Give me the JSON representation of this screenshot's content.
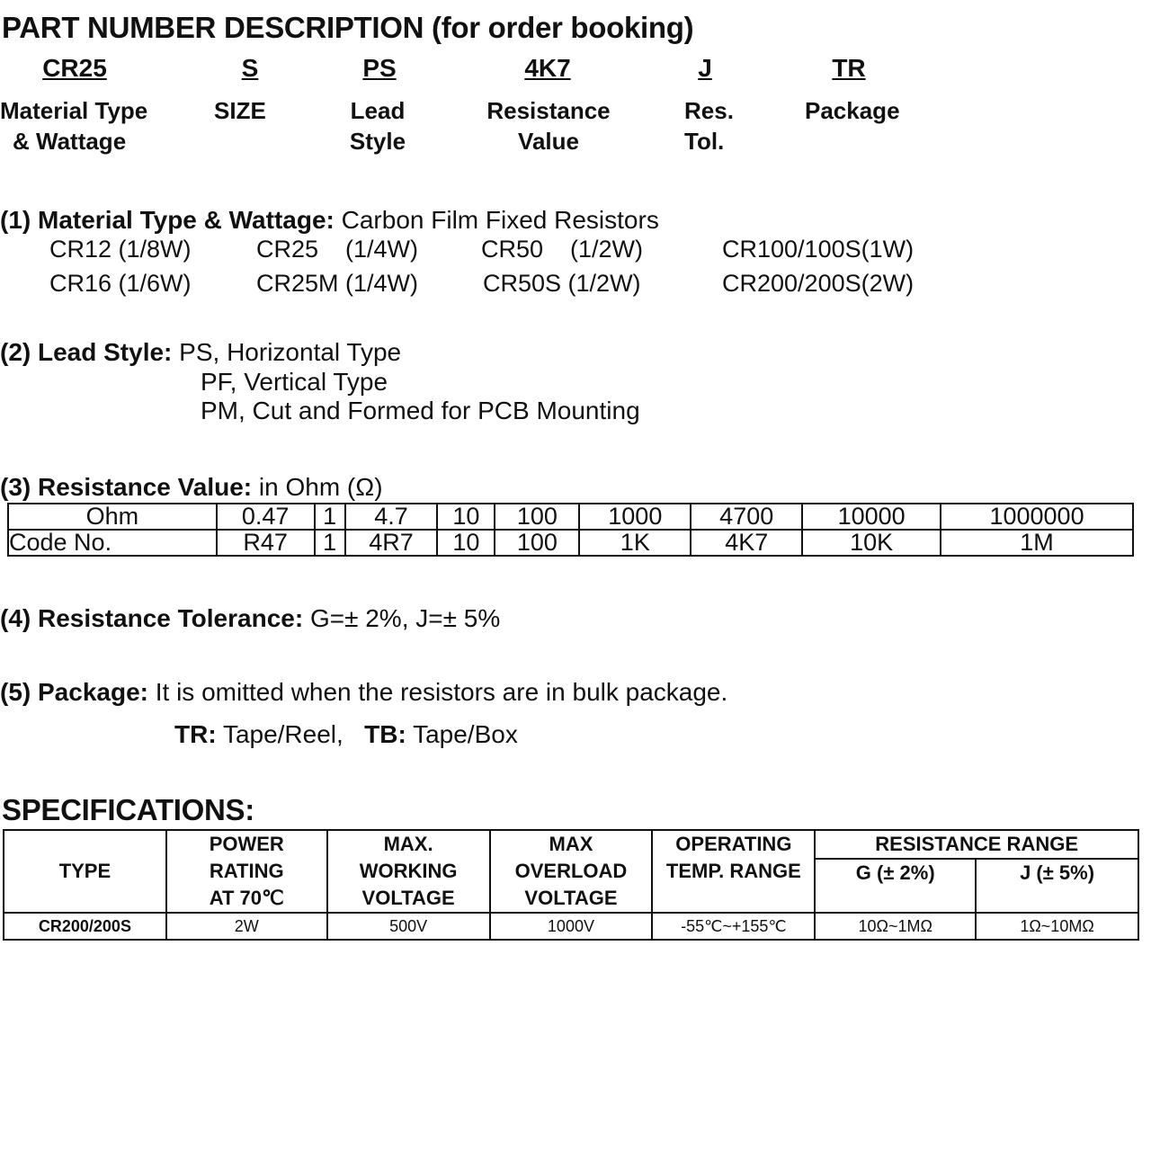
{
  "title": "PART NUMBER DESCRIPTION (for order booking)",
  "part_fields": [
    {
      "code": "CR25",
      "label1": "Material Type",
      "label2": "& Wattage"
    },
    {
      "code": "S",
      "label1": "SIZE",
      "label2": ""
    },
    {
      "code": "PS",
      "label1": "Lead",
      "label2": "Style"
    },
    {
      "code": "4K7",
      "label1": "Resistance",
      "label2": "Value"
    },
    {
      "code": "J",
      "label1": "Res.",
      "label2": "Tol."
    },
    {
      "code": "TR",
      "label1": "Package",
      "label2": ""
    }
  ],
  "section1": {
    "heading": "(1) Material Type & Wattage:",
    "text": "Carbon Film Fixed Resistors",
    "options": [
      [
        "CR12 (1/8W)",
        "CR25    (1/4W)",
        "CR50    (1/2W)",
        "CR100/100S(1W)"
      ],
      [
        "CR16 (1/6W)",
        "CR25M (1/4W)",
        "CR50S (1/2W)",
        "CR200/200S(2W)"
      ]
    ]
  },
  "section2": {
    "heading": "(2) Lead Style:",
    "lines": [
      "PS, Horizontal Type",
      "PF, Vertical Type",
      "PM, Cut and Formed for PCB Mounting"
    ]
  },
  "section3": {
    "heading": "(3) Resistance Value:",
    "text": "in Ohm (Ω)",
    "rows": [
      [
        "Ohm",
        "0.47",
        "1",
        "4.7",
        "10",
        "100",
        "1000",
        "4700",
        "10000",
        "1000000"
      ],
      [
        "Code No.",
        "R47",
        "1",
        "4R7",
        "10",
        "100",
        "1K",
        "4K7",
        "10K",
        "1M"
      ]
    ]
  },
  "section4": {
    "heading": "(4) Resistance Tolerance:",
    "text": "G=± 2%, J=± 5%"
  },
  "section5": {
    "heading": "(5) Package:",
    "text": "It is omitted when the resistors are in bulk package.",
    "tr_code": "TR:",
    "tr_text": "Tape/Reel,",
    "tb_code": "TB:",
    "tb_text": "Tape/Box"
  },
  "specs": {
    "heading": "SPECIFICATIONS:",
    "headers": {
      "type": "TYPE",
      "power": [
        "POWER",
        "RATING",
        "AT 70℃"
      ],
      "working": [
        "MAX.",
        "WORKING",
        "VOLTAGE"
      ],
      "overload": [
        "MAX",
        "OVERLOAD",
        "VOLTAGE"
      ],
      "temp": [
        "OPERATING",
        "TEMP. RANGE"
      ],
      "range": "RESISTANCE RANGE",
      "g": "G (± 2%)",
      "j": "J (± 5%)"
    },
    "rows": [
      [
        "CR200/200S",
        "2W",
        "500V",
        "1000V",
        "-55℃~+155℃",
        "10Ω~1MΩ",
        "1Ω~10MΩ"
      ]
    ]
  }
}
